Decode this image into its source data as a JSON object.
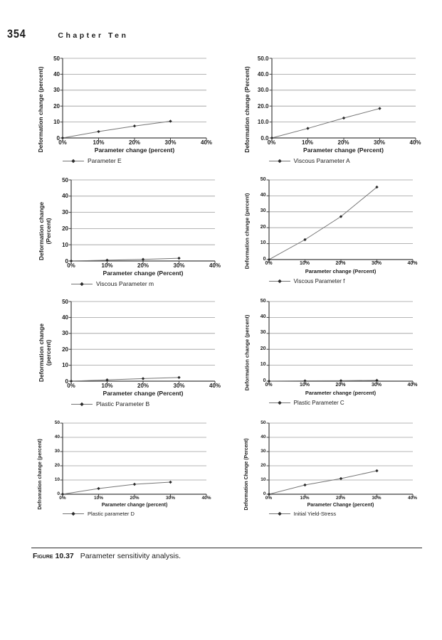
{
  "page": {
    "number": "354",
    "chapter": "Chapter Ten"
  },
  "caption": {
    "label": "Figure 10.37",
    "text": "Parameter sensitivity analysis."
  },
  "colors": {
    "gridline": "#9b9b9b",
    "axis": "#3f3f3f",
    "series": "#757575",
    "marker": "#2b2b2b",
    "text": "#1d1d1d"
  },
  "chart_data": [
    {
      "type": "line",
      "id": "parameter-e",
      "legend": "Parameter E",
      "title": "",
      "y_label": "Deformation change (percent)",
      "x_label": "Parameter change (percent)",
      "y_ticks": [
        "0",
        "10",
        "20",
        "30",
        "40",
        "50"
      ],
      "x_ticks": [
        "0%",
        "10%",
        "20%",
        "30%",
        "40%"
      ],
      "ylim": [
        0,
        50
      ],
      "xlim": [
        0,
        40
      ],
      "grid": "horizontal",
      "legend_position": "bottom-left",
      "x": [
        0,
        10,
        20,
        30
      ],
      "y": [
        0,
        4,
        7.5,
        10.5
      ]
    },
    {
      "type": "line",
      "id": "viscous-parameter-a",
      "legend": "Viscous Parameter A",
      "title": "",
      "y_label": "Deformation change (Percent)",
      "x_label": "Parameter change (Percent)",
      "y_ticks": [
        "0.0",
        "10.0",
        "20.0",
        "30.0",
        "40.0",
        "50.0"
      ],
      "x_ticks": [
        "0%",
        "10%",
        "20%",
        "30%",
        "40%"
      ],
      "ylim": [
        0,
        50
      ],
      "xlim": [
        0,
        40
      ],
      "grid": "horizontal",
      "legend_position": "bottom-left",
      "x": [
        0,
        10,
        20,
        30
      ],
      "y": [
        0,
        6,
        12.5,
        18.5
      ]
    },
    {
      "type": "line",
      "id": "viscous-parameter-m",
      "legend": "Viscous Parameter m",
      "title": "",
      "y_label": "Deformation change\n(Percent)",
      "x_label": "Parameter change (Percent)",
      "y_ticks": [
        "0",
        "10",
        "20",
        "30",
        "40",
        "50"
      ],
      "x_ticks": [
        "0%",
        "10%",
        "20%",
        "30%",
        "40%"
      ],
      "ylim": [
        0,
        50
      ],
      "xlim": [
        0,
        40
      ],
      "grid": "horizontal",
      "legend_position": "bottom-left",
      "x": [
        0,
        10,
        20,
        30
      ],
      "y": [
        0,
        0.5,
        1,
        1.7
      ]
    },
    {
      "type": "line",
      "id": "viscous-parameter-f",
      "legend": "Viscous Parameter f",
      "title": "",
      "y_label": "Deformation change (percent)",
      "x_label": "Parameter change (Percent)",
      "y_ticks": [
        "0",
        "10",
        "20",
        "30",
        "40",
        "50"
      ],
      "x_ticks": [
        "0%",
        "10%",
        "20%",
        "30%",
        "40%"
      ],
      "ylim": [
        0,
        50
      ],
      "xlim": [
        0,
        40
      ],
      "grid": "horizontal",
      "legend_position": "bottom-left",
      "x": [
        0,
        10,
        20,
        30
      ],
      "y": [
        0,
        12.5,
        27,
        45.5
      ]
    },
    {
      "type": "line",
      "id": "plastic-parameter-b",
      "legend": "Plastic Parameter B",
      "title": "",
      "y_label": "Deformation change\n(percent)",
      "x_label": "Parameter change (Percent)",
      "y_ticks": [
        "0",
        "10",
        "20",
        "30",
        "40",
        "50"
      ],
      "x_ticks": [
        "0%",
        "10%",
        "20%",
        "30%",
        "40%"
      ],
      "ylim": [
        0,
        50
      ],
      "xlim": [
        0,
        40
      ],
      "grid": "horizontal",
      "legend_position": "bottom-left",
      "x": [
        0,
        10,
        20,
        30
      ],
      "y": [
        0,
        0.8,
        1.6,
        2.3
      ]
    },
    {
      "type": "line",
      "id": "plastic-parameter-c",
      "legend": "Plastic Parameter C",
      "title": "",
      "y_label": "Deformation change (percent)",
      "x_label": "Parameter change (percent)",
      "y_ticks": [
        "0",
        "10",
        "20",
        "30",
        "40",
        "50"
      ],
      "x_ticks": [
        "0%",
        "10%",
        "20%",
        "30%",
        "40%"
      ],
      "ylim": [
        0,
        50
      ],
      "xlim": [
        0,
        40
      ],
      "grid": "horizontal",
      "legend_position": "bottom-left",
      "x": [
        0,
        10,
        20,
        30
      ],
      "y": [
        0,
        0.2,
        0.3,
        0.5
      ]
    },
    {
      "type": "line",
      "id": "plastic-parameter-d",
      "legend": "Plastic parameter D",
      "title": "",
      "y_label": "Defromation change (percent)",
      "x_label": "Parameter change (percent)",
      "y_ticks": [
        "0",
        "10",
        "20",
        "30",
        "40",
        "50"
      ],
      "x_ticks": [
        "0%",
        "10%",
        "20%",
        "30%",
        "40%"
      ],
      "ylim": [
        0,
        50
      ],
      "xlim": [
        0,
        40
      ],
      "grid": "horizontal",
      "legend_position": "bottom-left",
      "x": [
        0,
        10,
        20,
        30
      ],
      "y": [
        0,
        4,
        7,
        8.5
      ]
    },
    {
      "type": "line",
      "id": "initial-yield-stress",
      "legend": "Initial Yield-Stress",
      "title": "",
      "y_label": "Deformation Change (Percent)",
      "x_label": "Parameter Change (percent)",
      "y_ticks": [
        "0",
        "10",
        "20",
        "30",
        "40",
        "50"
      ],
      "x_ticks": [
        "0%",
        "10%",
        "20%",
        "30%",
        "40%"
      ],
      "ylim": [
        0,
        50
      ],
      "xlim": [
        0,
        40
      ],
      "grid": "horizontal",
      "legend_position": "bottom-left",
      "x": [
        0,
        10,
        20,
        30
      ],
      "y": [
        0,
        6.5,
        11,
        16.5
      ]
    }
  ]
}
